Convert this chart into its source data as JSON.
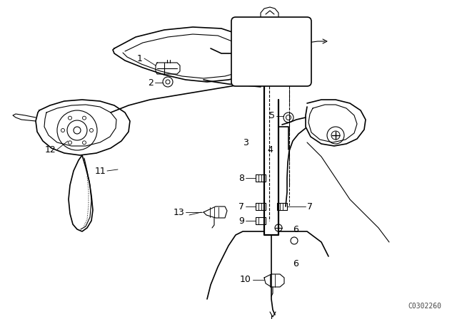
{
  "bg_color": "#ffffff",
  "diagram_color": "#000000",
  "part_number": "C0302260",
  "figsize": [
    6.4,
    4.48
  ],
  "dpi": 100
}
